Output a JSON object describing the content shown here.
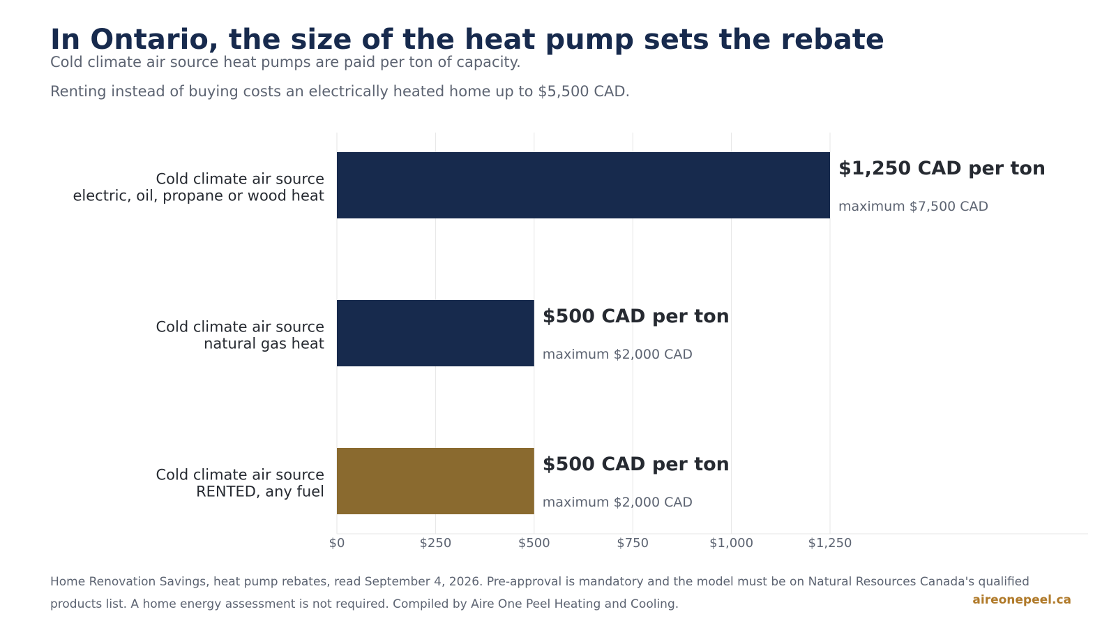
{
  "header": {
    "title": "In Ontario, the size of the heat pump sets the rebate",
    "subtitle_line1": "Cold climate air source heat pumps are paid per ton of capacity.",
    "subtitle_line2": "Renting instead of buying costs an electrically heated home up to $5,500 CAD."
  },
  "chart_data": {
    "type": "bar",
    "orientation": "horizontal",
    "xlim": [
      0,
      1250
    ],
    "x_ticks": [
      0,
      250,
      500,
      750,
      1000,
      1250
    ],
    "x_tick_labels": [
      "$0",
      "$250",
      "$500",
      "$750",
      "$1,000",
      "$1,250"
    ],
    "grid": "vertical",
    "categories": [
      [
        "Cold climate air source",
        "electric, oil, propane or wood heat"
      ],
      [
        "Cold climate air source",
        "natural gas heat"
      ],
      [
        "Cold climate air source",
        "RENTED, any fuel"
      ]
    ],
    "values": [
      1250,
      500,
      500
    ],
    "colors": [
      "#172a4d",
      "#172a4d",
      "#8a6a2f"
    ],
    "value_labels": [
      "$1,250 CAD per ton",
      "$500 CAD per ton",
      "$500 CAD per ton"
    ],
    "max_labels": [
      "maximum $7,500 CAD",
      "maximum $2,000 CAD",
      "maximum $2,000 CAD"
    ]
  },
  "footer": {
    "note": "Home Renovation Savings, heat pump rebates, read September 4, 2026. Pre-approval is mandatory and the model must be on Natural Resources Canada's qualified products list. A home energy assessment is not required. Compiled by Aire One Peel Heating and Cooling.",
    "brand": "aireonepeel.ca"
  }
}
